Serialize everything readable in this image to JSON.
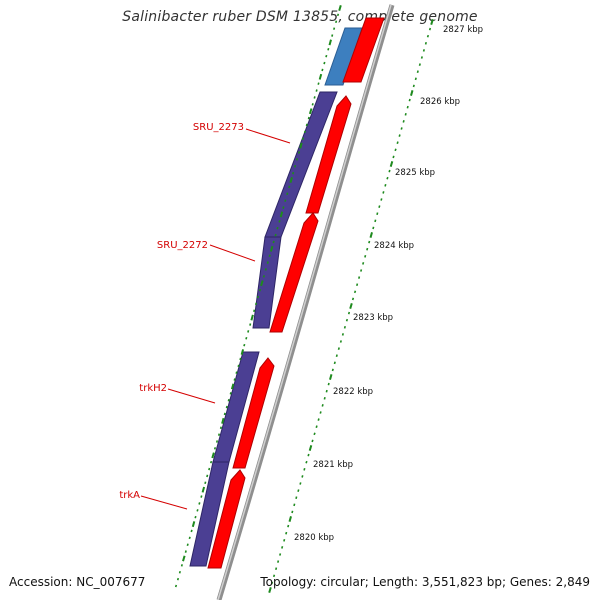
{
  "title": "Salinibacter ruber DSM 13855, complete genome",
  "footer": {
    "accession": "Accession: NC_007677",
    "summary": "Topology: circular; Length: 3,551,823 bp; Genes: 2,849"
  },
  "colors": {
    "forward_gene": "#ff0000",
    "reverse_gene": "#4b3f93",
    "rna_gene": "#3e7fbf",
    "backbone": "#8a8a8a",
    "ticks": "#1e8a1e",
    "gene_label": "#d40000",
    "tick_label": "#111111"
  },
  "scale": {
    "unit": "kbp",
    "labels": [
      "2820 kbp",
      "2821 kbp",
      "2822 kbp",
      "2823 kbp",
      "2824 kbp",
      "2825 kbp",
      "2826 kbp",
      "2827 kbp"
    ]
  },
  "gene_labels": [
    "SRU_2273",
    "SRU_2272",
    "trkH2",
    "trkA"
  ],
  "genes": [
    {
      "strand": "reverse",
      "kind": "rna",
      "start_kbp": 2826.0,
      "end_kbp": 2826.6
    },
    {
      "strand": "forward",
      "kind": "cds",
      "start_kbp": 2826.0,
      "end_kbp": 2826.6
    },
    {
      "strand": "reverse",
      "kind": "cds",
      "start_kbp": 2824.4,
      "end_kbp": 2826.0,
      "label": "SRU_2273"
    },
    {
      "strand": "forward",
      "kind": "cds",
      "start_kbp": 2825.1,
      "end_kbp": 2826.0
    },
    {
      "strand": "reverse",
      "kind": "cds",
      "start_kbp": 2822.85,
      "end_kbp": 2824.4,
      "label": "SRU_2272"
    },
    {
      "strand": "forward",
      "kind": "cds",
      "start_kbp": 2822.8,
      "end_kbp": 2825.1
    },
    {
      "strand": "reverse",
      "kind": "cds",
      "start_kbp": 2821.2,
      "end_kbp": 2822.4,
      "label": "trkH2"
    },
    {
      "strand": "forward",
      "kind": "cds",
      "start_kbp": 2821.25,
      "end_kbp": 2822.4
    },
    {
      "strand": "reverse",
      "kind": "cds",
      "start_kbp": 2819.65,
      "end_kbp": 2821.2,
      "label": "trkA"
    },
    {
      "strand": "forward",
      "kind": "cds",
      "start_kbp": 2819.6,
      "end_kbp": 2821.2
    }
  ]
}
